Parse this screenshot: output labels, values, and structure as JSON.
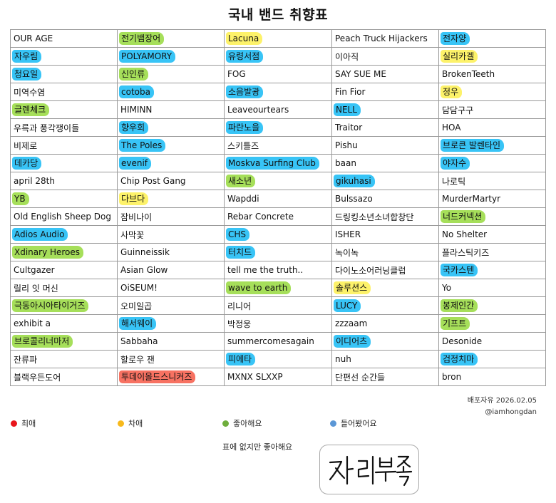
{
  "title": "국내 밴드 취향표",
  "colors": {
    "fav": "#f77262",
    "sub": "#fdf26a",
    "like": "#a6df5a",
    "pre": "#38c4f6"
  },
  "rows": [
    [
      {
        "t": "OUR AGE"
      },
      {
        "t": "전기뱀장어",
        "h": "like"
      },
      {
        "t": "Lacuna",
        "h": "sub"
      },
      {
        "t": "Peach Truck Hijackers"
      },
      {
        "t": "전자양",
        "h": "pre"
      }
    ],
    [
      {
        "t": "자우림",
        "h": "pre"
      },
      {
        "t": "POLYAMORY",
        "h": "pre"
      },
      {
        "t": "유령서점",
        "h": "pre"
      },
      {
        "t": "이아직"
      },
      {
        "t": "실리카겔",
        "h": "sub"
      }
    ],
    [
      {
        "t": "청요일",
        "h": "pre"
      },
      {
        "t": "신인류",
        "h": "like"
      },
      {
        "t": "FOG"
      },
      {
        "t": "SAY SUE ME"
      },
      {
        "t": "BrokenTeeth"
      }
    ],
    [
      {
        "t": "미역수염"
      },
      {
        "t": "cotoba",
        "h": "pre"
      },
      {
        "t": "소음발광",
        "h": "pre"
      },
      {
        "t": "Fin Fior"
      },
      {
        "t": "정우",
        "h": "sub"
      }
    ],
    [
      {
        "t": "글렌체크",
        "h": "like"
      },
      {
        "t": "HIMINN"
      },
      {
        "t": "Leaveourtears"
      },
      {
        "t": "NELL",
        "h": "pre"
      },
      {
        "t": "담담구구"
      }
    ],
    [
      {
        "t": "우륵과 풍각쟁이들"
      },
      {
        "t": "향우회",
        "h": "pre"
      },
      {
        "t": "파란노을",
        "h": "pre"
      },
      {
        "t": "Traitor"
      },
      {
        "t": "HOA"
      }
    ],
    [
      {
        "t": "비제로"
      },
      {
        "t": "The Poles",
        "h": "pre"
      },
      {
        "t": "스키틀즈"
      },
      {
        "t": "Pishu"
      },
      {
        "t": "브로큰 발렌타인",
        "h": "pre"
      }
    ],
    [
      {
        "t": "데카당",
        "h": "pre"
      },
      {
        "t": "evenif",
        "h": "pre"
      },
      {
        "t": "Moskva Surfing Club",
        "h": "pre"
      },
      {
        "t": "baan"
      },
      {
        "t": "야자수",
        "h": "pre"
      }
    ],
    [
      {
        "t": "april 28th"
      },
      {
        "t": "Chip Post Gang"
      },
      {
        "t": "새소년",
        "h": "like"
      },
      {
        "t": "gikuhasi",
        "h": "pre"
      },
      {
        "t": "나로틱"
      }
    ],
    [
      {
        "t": "YB",
        "h": "like"
      },
      {
        "t": "다브다",
        "h": "sub"
      },
      {
        "t": "Wapddi"
      },
      {
        "t": "Bulssazo"
      },
      {
        "t": "MurderMartyr"
      }
    ],
    [
      {
        "t": "Old English Sheep Dog"
      },
      {
        "t": "잠비나이"
      },
      {
        "t": "Rebar Concrete"
      },
      {
        "t": "드링킹소년소녀합창단"
      },
      {
        "t": "너드커넥션",
        "h": "like"
      }
    ],
    [
      {
        "t": "Adios Audio",
        "h": "pre"
      },
      {
        "t": "사막꽃"
      },
      {
        "t": "CHS",
        "h": "pre"
      },
      {
        "t": "ISHER"
      },
      {
        "t": "No Shelter"
      }
    ],
    [
      {
        "t": "Xdinary Heroes",
        "h": "like"
      },
      {
        "t": "Guinneissik"
      },
      {
        "t": "터치드",
        "h": "pre"
      },
      {
        "t": "녹이녹"
      },
      {
        "t": "플라스틱키즈"
      }
    ],
    [
      {
        "t": "Cultgazer"
      },
      {
        "t": "Asian Glow"
      },
      {
        "t": "tell me the truth.."
      },
      {
        "t": "다이노소어러닝클럽"
      },
      {
        "t": "국카스텐",
        "h": "pre"
      }
    ],
    [
      {
        "t": "릴리 잇 머신"
      },
      {
        "t": "OiSEUM!"
      },
      {
        "t": "wave to earth",
        "h": "like"
      },
      {
        "t": "솔루션스",
        "h": "sub"
      },
      {
        "t": "Yo"
      }
    ],
    [
      {
        "t": "극동아시아타이거즈",
        "h": "like"
      },
      {
        "t": "오미일곱"
      },
      {
        "t": "리니어"
      },
      {
        "t": "LUCY",
        "h": "pre"
      },
      {
        "t": "봉제인간",
        "h": "like"
      }
    ],
    [
      {
        "t": "exhibit a"
      },
      {
        "t": "해서웨이",
        "h": "pre"
      },
      {
        "t": "박정웅"
      },
      {
        "t": "zzzaam"
      },
      {
        "t": "기프트",
        "h": "like"
      }
    ],
    [
      {
        "t": "브로콜리너마저",
        "h": "like"
      },
      {
        "t": "Sabbaha"
      },
      {
        "t": "summercomesagain"
      },
      {
        "t": "이디어츠",
        "h": "pre"
      },
      {
        "t": "Desonide"
      }
    ],
    [
      {
        "t": "잔류파"
      },
      {
        "t": "할로우 잰"
      },
      {
        "t": "피에타",
        "h": "pre"
      },
      {
        "t": "nuh"
      },
      {
        "t": "검정치마",
        "h": "pre"
      }
    ],
    [
      {
        "t": "블랙우든도어"
      },
      {
        "t": "투데이올드스니커즈",
        "h": "fav"
      },
      {
        "t": "MXNX SLXXP"
      },
      {
        "t": "단편선 순간들"
      },
      {
        "t": "bron"
      }
    ]
  ],
  "credit": {
    "line1": "배포자유 2026.02.05",
    "line2": "@iamhongdan"
  },
  "legend": [
    {
      "label": "최애",
      "color": "#e8151b"
    },
    {
      "label": "차애",
      "color": "#f7b91c"
    },
    {
      "label": "좋아해요",
      "color": "#6fae3d"
    },
    {
      "label": "들어봤어요",
      "color": "#5b97d6"
    }
  ],
  "note": "표에 없지만 좋아해요",
  "box_text": "자리부족"
}
